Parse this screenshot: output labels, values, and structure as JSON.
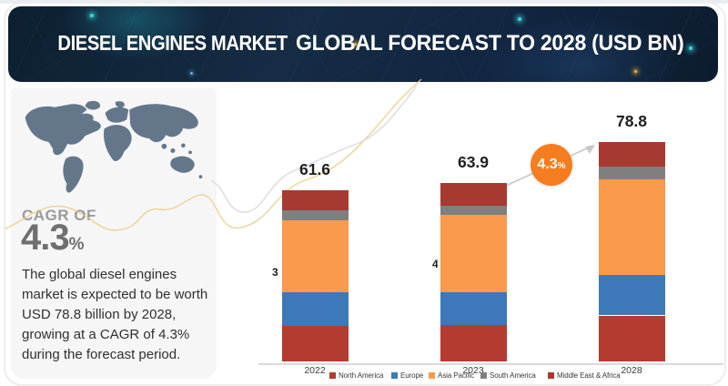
{
  "banner": {
    "title_part1": "DIESEL ENGINES MARKET",
    "title_part2": "GLOBAL FORECAST TO 2028 (USD BN)"
  },
  "sidebar": {
    "cagr_label": "CAGR OF",
    "cagr_value": "4.3",
    "cagr_percent": "%",
    "description": "The global diesel engines market is expected to be worth USD 78.8 billion by 2028, growing at a CAGR of 4.3% during the forecast period."
  },
  "badge": {
    "value": "4.3",
    "percent": "%",
    "color": "#f57d1f"
  },
  "chart_data": {
    "type": "bar",
    "stacked": true,
    "title": "Diesel Engines Market, Global Forecast to 2028 (USD BN)",
    "categories": [
      "2022",
      "2023",
      "2028"
    ],
    "totals": [
      61.6,
      63.9,
      78.8
    ],
    "series": [
      {
        "name": "North America",
        "color": "#b43b30",
        "values": [
          12.6,
          13.2,
          16.5
        ]
      },
      {
        "name": "Europe",
        "color": "#3d79b8",
        "values": [
          12.1,
          11.7,
          14.7
        ]
      },
      {
        "name": "Asia Pacific",
        "color": "#f99a4d",
        "values": [
          26.1,
          27.7,
          34.0
        ]
      },
      {
        "name": "South America",
        "color": "#7f7f7f",
        "values": [
          3.3,
          3.2,
          4.6
        ]
      },
      {
        "name": "Middle East & Africa",
        "color": "#a63a31",
        "values": [
          7.5,
          8.1,
          9.0
        ]
      }
    ],
    "cagr_annotation": "4.3%",
    "legend_position": "bottom",
    "xlabel": "",
    "ylabel": "",
    "grid": false,
    "partial_label_fragments": [
      "3",
      "4"
    ]
  },
  "colors": {
    "banner_navy": "#12263c",
    "panel_bg": "#f6f6f7",
    "map_fill": "#64778a",
    "accent_orange": "#f57d1f",
    "curve_yellow": "#ecca82",
    "curve_gray": "#d9d9d9",
    "axis_gray": "#dadada"
  }
}
